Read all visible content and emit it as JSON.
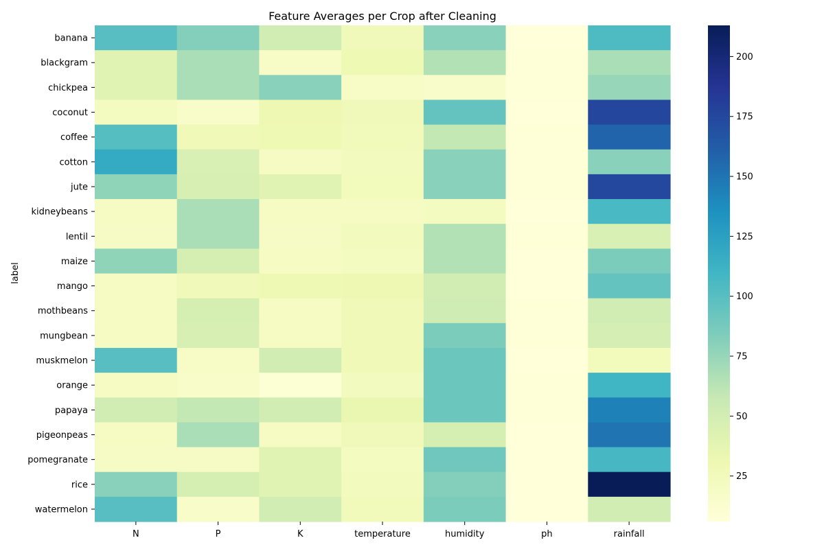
{
  "chart_data": {
    "type": "heatmap",
    "title": "Feature Averages per Crop after Cleaning",
    "xlabel": "",
    "ylabel": "label",
    "columns": [
      "N",
      "P",
      "K",
      "temperature",
      "humidity",
      "ph",
      "rainfall"
    ],
    "rows": [
      "banana",
      "blackgram",
      "chickpea",
      "coconut",
      "coffee",
      "cotton",
      "jute",
      "kidneybeans",
      "lentil",
      "maize",
      "mango",
      "mothbeans",
      "mungbean",
      "muskmelon",
      "orange",
      "papaya",
      "pigeonpeas",
      "pomegranate",
      "rice",
      "watermelon"
    ],
    "values": [
      [
        100,
        82,
        50,
        27,
        80,
        6,
        104
      ],
      [
        40,
        68,
        18,
        30,
        65,
        7,
        68
      ],
      [
        40,
        68,
        80,
        18,
        16,
        7,
        75
      ],
      [
        22,
        17,
        31,
        27,
        95,
        6,
        176
      ],
      [
        101,
        28,
        30,
        26,
        59,
        7,
        158
      ],
      [
        118,
        46,
        20,
        24,
        80,
        7,
        80
      ],
      [
        78,
        47,
        40,
        25,
        80,
        7,
        175
      ],
      [
        21,
        68,
        20,
        20,
        22,
        6,
        106
      ],
      [
        19,
        68,
        19,
        24,
        65,
        7,
        46
      ],
      [
        78,
        48,
        20,
        22,
        65,
        6,
        85
      ],
      [
        20,
        27,
        30,
        31,
        50,
        6,
        95
      ],
      [
        21,
        48,
        20,
        28,
        53,
        7,
        51
      ],
      [
        21,
        47,
        20,
        28,
        85,
        7,
        49
      ],
      [
        100,
        18,
        50,
        28,
        92,
        6,
        25
      ],
      [
        20,
        17,
        10,
        23,
        92,
        7,
        110
      ],
      [
        50,
        59,
        50,
        34,
        92,
        7,
        143
      ],
      [
        21,
        68,
        20,
        27,
        48,
        6,
        150
      ],
      [
        19,
        19,
        40,
        22,
        90,
        6,
        107
      ],
      [
        80,
        48,
        40,
        24,
        82,
        6,
        236
      ],
      [
        100,
        17,
        50,
        26,
        85,
        6,
        51
      ]
    ],
    "colorbar": {
      "min": 6,
      "max": 213,
      "ticks": [
        25,
        50,
        75,
        100,
        125,
        150,
        175,
        200
      ],
      "colormap": "YlGnBu"
    },
    "legend": "colorbar-right",
    "grid": false
  }
}
